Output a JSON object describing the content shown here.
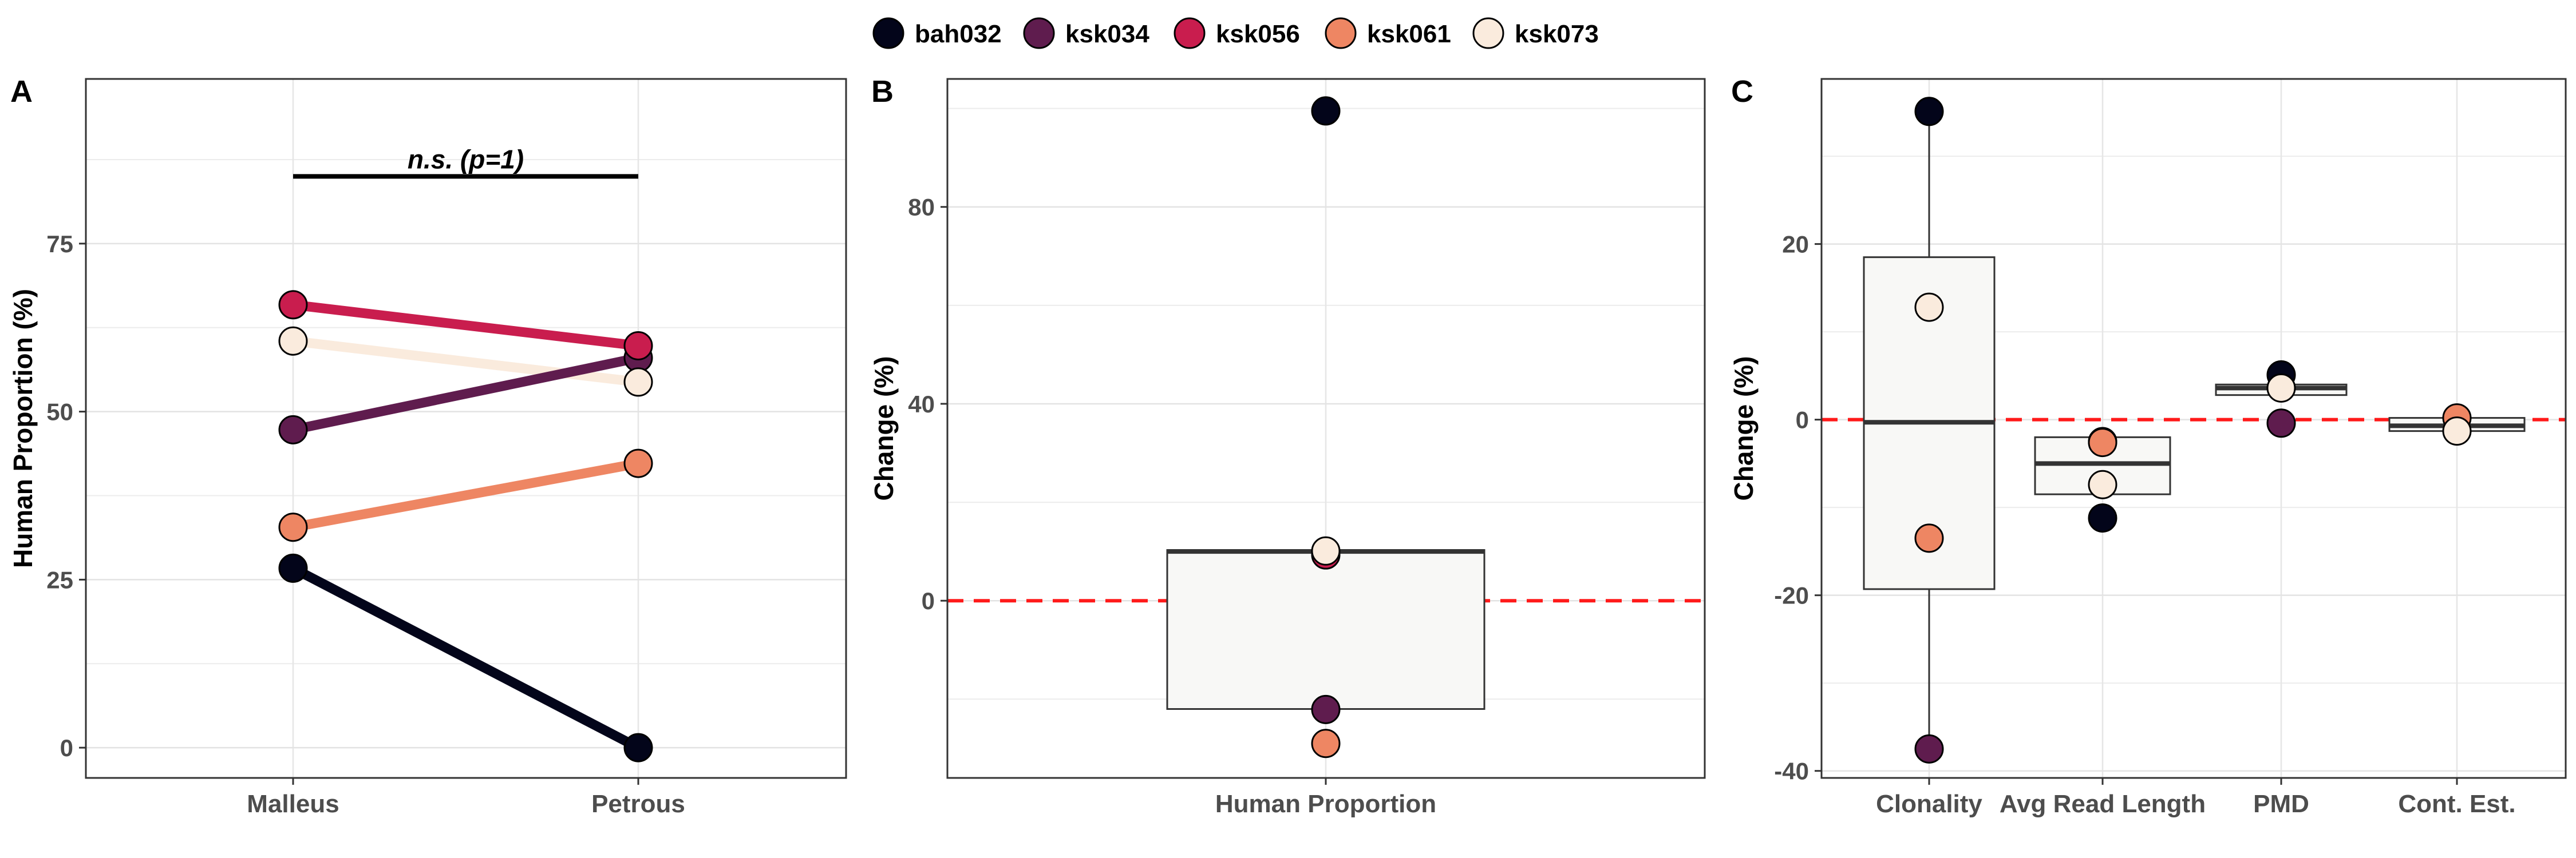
{
  "legend": {
    "entries": [
      {
        "name": "bah032",
        "color": "#03051A"
      },
      {
        "name": "ksk034",
        "color": "#5F1C4E"
      },
      {
        "name": "ksk056",
        "color": "#C91D4E"
      },
      {
        "name": "ksk061",
        "color": "#EE8663"
      },
      {
        "name": "ksk073",
        "color": "#FAEBDD"
      }
    ]
  },
  "panels": {
    "A": {
      "label": "A"
    },
    "B": {
      "label": "B"
    },
    "C": {
      "label": "C"
    }
  },
  "chart_data": [
    {
      "panel": "A",
      "type": "line",
      "xlabel": "",
      "ylabel": "Human Proportion (%)",
      "categories": [
        "Malleus",
        "Petrous"
      ],
      "ylim": [
        -4.5,
        99.5
      ],
      "yticks": [
        0,
        25,
        50,
        75
      ],
      "grid": true,
      "series": [
        {
          "name": "bah032",
          "values": [
            26.7,
            0
          ]
        },
        {
          "name": "ksk034",
          "values": [
            47.3,
            58.0
          ]
        },
        {
          "name": "ksk056",
          "values": [
            65.9,
            59.8
          ]
        },
        {
          "name": "ksk061",
          "values": [
            32.8,
            42.3
          ]
        },
        {
          "name": "ksk073",
          "values": [
            60.5,
            54.4
          ]
        }
      ],
      "annotation": {
        "text": "n.s. (p=1)",
        "y": 85,
        "x_from": "Malleus",
        "x_to": "Petrous"
      }
    },
    {
      "panel": "B",
      "type": "box",
      "xlabel": "",
      "ylabel": "Change (%)",
      "categories": [
        "Human Proportion"
      ],
      "ylim": [
        -36,
        106
      ],
      "yticks": [
        0,
        40,
        80
      ],
      "grid": true,
      "reference_line": 0,
      "boxes": [
        {
          "category": "Human Proportion",
          "q1": -22,
          "median": 10,
          "q3": 10.3,
          "whisker_low": -22,
          "whisker_high": 10.3
        }
      ],
      "points": [
        {
          "series": "bah032",
          "category": "Human Proportion",
          "value": 99.5
        },
        {
          "series": "ksk034",
          "category": "Human Proportion",
          "value": -22.1
        },
        {
          "series": "ksk056",
          "category": "Human Proportion",
          "value": 9.3
        },
        {
          "series": "ksk061",
          "category": "Human Proportion",
          "value": -29.0
        },
        {
          "series": "ksk073",
          "category": "Human Proportion",
          "value": 10.1
        }
      ]
    },
    {
      "panel": "C",
      "type": "box",
      "xlabel": "",
      "ylabel": "Change (%)",
      "categories": [
        "Clonality",
        "Avg Read Length",
        "PMD",
        "Cont. Est."
      ],
      "ylim": [
        -40.8,
        38.8
      ],
      "yticks": [
        -40,
        -20,
        0,
        20
      ],
      "grid": true,
      "reference_line": 0,
      "boxes": [
        {
          "category": "Clonality",
          "q1": -19.3,
          "median": -0.3,
          "q3": 18.5,
          "whisker_low": -37.5,
          "whisker_high": 35.1
        },
        {
          "category": "Avg Read Length",
          "q1": -8.5,
          "median": -5.0,
          "q3": -2.0,
          "whisker_low": -8.5,
          "whisker_high": -2.0
        },
        {
          "category": "PMD",
          "q1": 2.8,
          "median": 3.6,
          "q3": 4.0,
          "whisker_low": 2.8,
          "whisker_high": 4.0
        },
        {
          "category": "Cont. Est.",
          "q1": -1.3,
          "median": -0.7,
          "q3": 0.2,
          "whisker_low": -1.3,
          "whisker_high": 0.2
        }
      ],
      "points": [
        {
          "series": "bah032",
          "category": "Clonality",
          "value": 35.1
        },
        {
          "series": "ksk034",
          "category": "Clonality",
          "value": -37.5
        },
        {
          "series": "ksk061",
          "category": "Clonality",
          "value": -13.5
        },
        {
          "series": "ksk073",
          "category": "Clonality",
          "value": 12.8
        },
        {
          "series": "ksk034",
          "category": "Avg Read Length",
          "value": -2.5
        },
        {
          "series": "bah032",
          "category": "Avg Read Length",
          "value": -11.2
        },
        {
          "series": "ksk061",
          "category": "Avg Read Length",
          "value": -2.6
        },
        {
          "series": "ksk073",
          "category": "Avg Read Length",
          "value": -7.4
        },
        {
          "series": "bah032",
          "category": "PMD",
          "value": 5.1
        },
        {
          "series": "ksk034",
          "category": "PMD",
          "value": -0.4
        },
        {
          "series": "ksk073",
          "category": "PMD",
          "value": 3.6
        },
        {
          "series": "ksk061",
          "category": "Cont. Est.",
          "value": 0.2
        },
        {
          "series": "ksk073",
          "category": "Cont. Est.",
          "value": -1.3
        }
      ]
    }
  ]
}
